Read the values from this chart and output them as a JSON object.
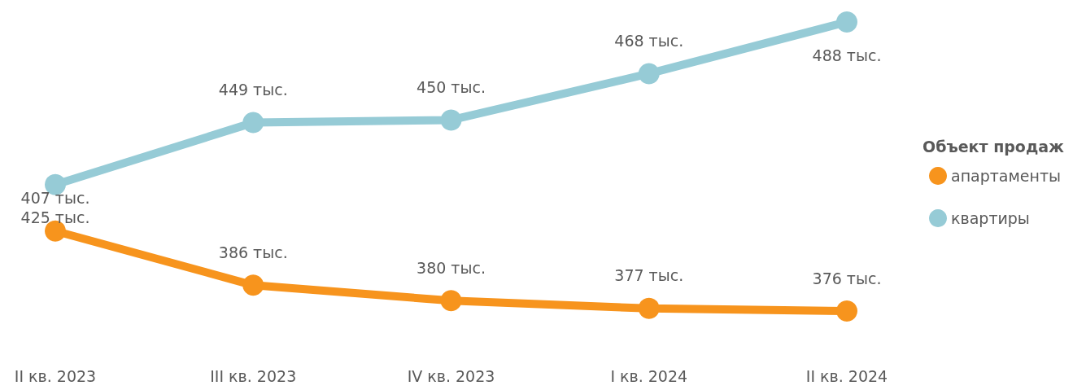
{
  "chart_data": {
    "type": "line",
    "categories": [
      "II кв. 2023",
      "III кв. 2023",
      "IV кв. 2023",
      "I кв. 2024",
      "II кв. 2024"
    ],
    "series": [
      {
        "name": "апартаменты",
        "color": "#f7941d",
        "values": [
          407,
          386,
          380,
          377,
          376
        ],
        "value_labels": [
          "407 тыс.",
          "386 тыс.",
          "380 тыс.",
          "377 тыс.",
          "376 тыс."
        ]
      },
      {
        "name": "квартиры",
        "color": "#96cbd6",
        "values": [
          425,
          449,
          450,
          468,
          488
        ],
        "value_labels": [
          "425 тыс.",
          "449 тыс.",
          "450 тыс.",
          "468 тыс.",
          "488 тыс."
        ]
      }
    ],
    "legend_title": "Объект продаж",
    "legend": "right",
    "grid": false,
    "marker": "circle",
    "line_style": "solid"
  }
}
